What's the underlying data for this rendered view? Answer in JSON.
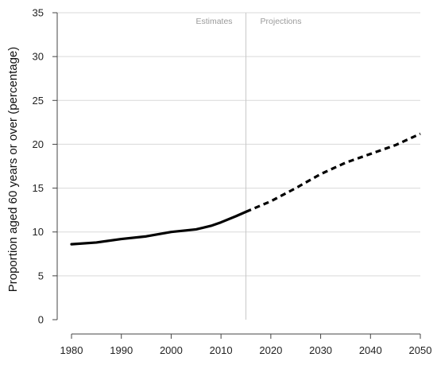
{
  "chart_data": {
    "type": "line",
    "title": "",
    "xlabel": "",
    "ylabel": "Proportion aged 60 years or over (percentage)",
    "xlim": [
      1980,
      2050
    ],
    "ylim": [
      0,
      35
    ],
    "xticks": [
      1980,
      1990,
      2000,
      2010,
      2020,
      2030,
      2040,
      2050
    ],
    "xtick_labels": [
      "1980",
      "1990",
      "2000",
      "2010",
      "2020",
      "2030",
      "2040",
      "2050"
    ],
    "yticks": [
      0,
      5,
      10,
      15,
      20,
      25,
      30,
      35
    ],
    "ytick_labels": [
      "0",
      "5",
      "10",
      "15",
      "20",
      "25",
      "30",
      "35"
    ],
    "grid": "horizontal",
    "divider_x": 2015,
    "annotations": [
      {
        "text": "Estimates",
        "side": "left"
      },
      {
        "text": "Projections",
        "side": "right"
      }
    ],
    "series": [
      {
        "style": "solid",
        "color": "#000000",
        "x": [
          1980,
          1985,
          1990,
          1995,
          2000,
          2005,
          2008,
          2010,
          2013,
          2015
        ],
        "y": [
          8.6,
          8.8,
          9.2,
          9.5,
          10.0,
          10.3,
          10.7,
          11.1,
          11.8,
          12.3
        ]
      },
      {
        "style": "dashed",
        "color": "#000000",
        "x": [
          2015,
          2020,
          2025,
          2030,
          2035,
          2040,
          2045,
          2050
        ],
        "y": [
          12.3,
          13.5,
          15.0,
          16.6,
          17.9,
          18.9,
          19.9,
          21.2
        ]
      }
    ]
  },
  "colors": {
    "gridline": "#d9d9d9",
    "divider": "#c8c8c8",
    "axis": "#444444",
    "series": "#000000"
  }
}
